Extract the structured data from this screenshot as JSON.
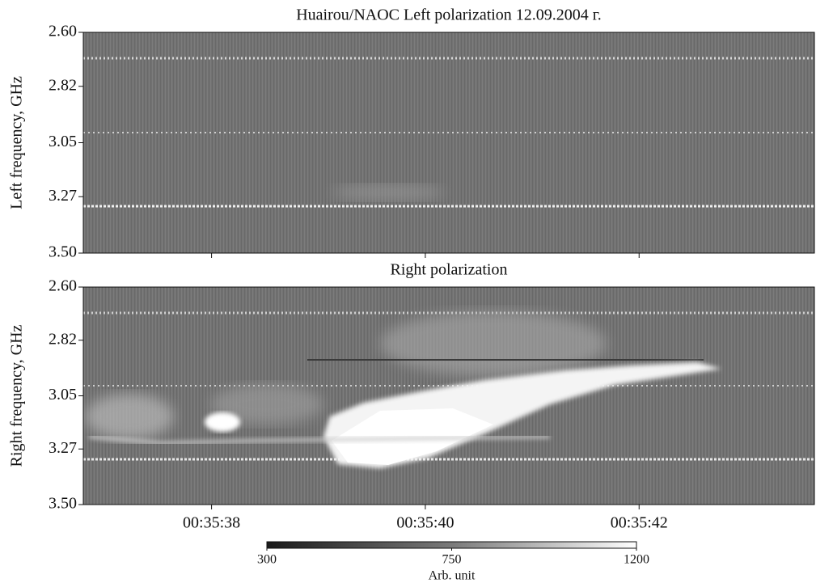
{
  "chart_data": [
    {
      "type": "spectrogram",
      "title": "Huairou/NAOC Left polarization 12.09.2004 г.",
      "y_label": "Left frequency, GHz",
      "ylim": [
        2.6,
        3.5
      ],
      "y_inverted": true,
      "yticks": [
        {
          "value": 2.6,
          "label": "2.60"
        },
        {
          "value": 2.82,
          "label": "2.82"
        },
        {
          "value": 3.05,
          "label": "3.05"
        },
        {
          "value": 3.27,
          "label": "3.27"
        },
        {
          "value": 3.5,
          "label": "3.50"
        }
      ],
      "xlim": [
        36.8,
        43.64
      ],
      "xticks": [
        38,
        40,
        42
      ]
    },
    {
      "type": "spectrogram",
      "title": "Right polarization",
      "y_label": "Right frequency, GHz",
      "ylim": [
        2.6,
        3.5
      ],
      "y_inverted": true,
      "yticks": [
        {
          "value": 2.6,
          "label": "2.60"
        },
        {
          "value": 2.82,
          "label": "2.82"
        },
        {
          "value": 3.05,
          "label": "3.05"
        },
        {
          "value": 3.27,
          "label": "3.27"
        },
        {
          "value": 3.5,
          "label": "3.50"
        }
      ],
      "xlim": [
        36.8,
        43.64
      ],
      "xticks": [
        {
          "value": 38,
          "label": "00:35:38"
        },
        {
          "value": 40,
          "label": "00:35:40"
        },
        {
          "value": 42,
          "label": "00:35:42"
        }
      ],
      "colorbar": {
        "label": "Arb. unit",
        "lim": [
          300,
          1200
        ],
        "ticks": [
          300,
          750,
          1200
        ]
      }
    }
  ]
}
